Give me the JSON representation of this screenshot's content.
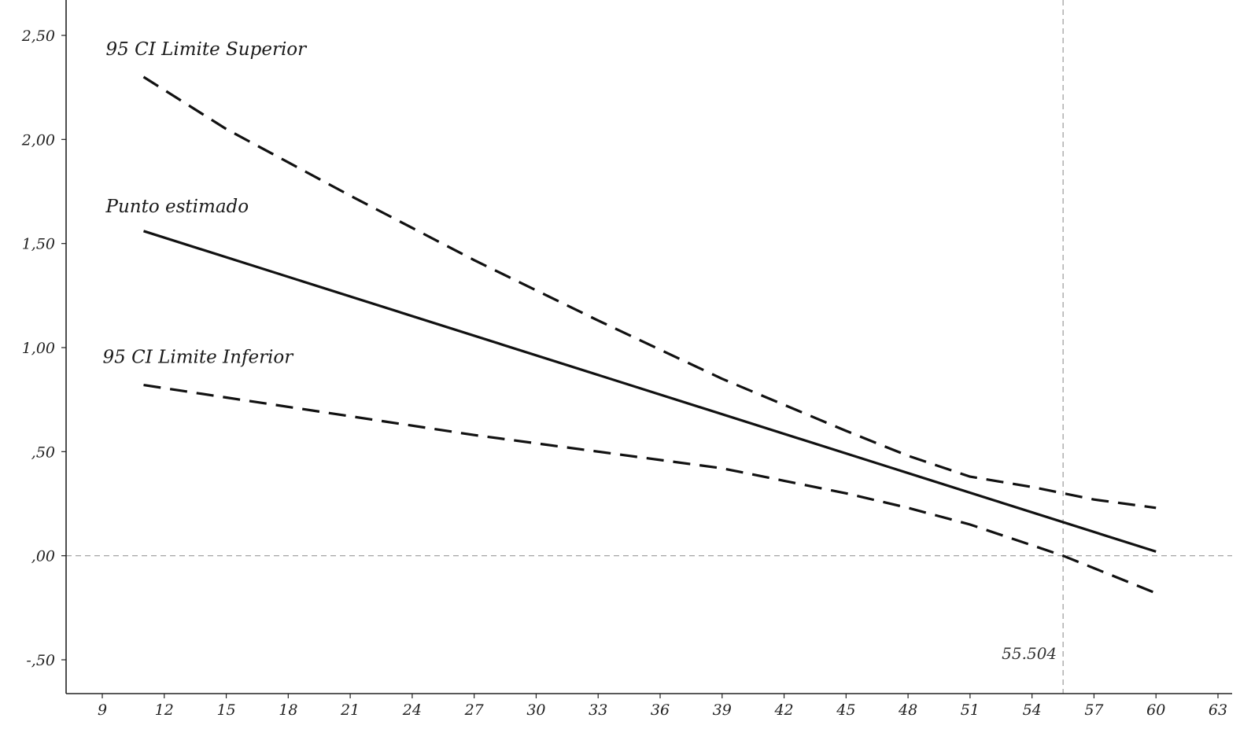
{
  "chart_data": {
    "type": "line",
    "xlim": [
      9,
      63
    ],
    "ylim": [
      -0.65,
      2.65
    ],
    "x_ticks": [
      {
        "value": 9,
        "label": "9"
      },
      {
        "value": 12,
        "label": "12"
      },
      {
        "value": 15,
        "label": "15"
      },
      {
        "value": 18,
        "label": "18"
      },
      {
        "value": 21,
        "label": "21"
      },
      {
        "value": 24,
        "label": "24"
      },
      {
        "value": 27,
        "label": "27"
      },
      {
        "value": 30,
        "label": "30"
      },
      {
        "value": 33,
        "label": "33"
      },
      {
        "value": 36,
        "label": "36"
      },
      {
        "value": 39,
        "label": "39"
      },
      {
        "value": 42,
        "label": "42"
      },
      {
        "value": 45,
        "label": "45"
      },
      {
        "value": 48,
        "label": "48"
      },
      {
        "value": 51,
        "label": "51"
      },
      {
        "value": 54,
        "label": "54"
      },
      {
        "value": 57,
        "label": "57"
      },
      {
        "value": 60,
        "label": "60"
      },
      {
        "value": 63,
        "label": "63"
      }
    ],
    "y_ticks": [
      {
        "value": 2.5,
        "label": "2,50"
      },
      {
        "value": 2.0,
        "label": "2,00"
      },
      {
        "value": 1.5,
        "label": "1,50"
      },
      {
        "value": 1.0,
        "label": "1,00"
      },
      {
        "value": 0.5,
        "label": ",50"
      },
      {
        "value": 0.0,
        "label": ",00"
      },
      {
        "value": -0.5,
        "label": "-,50"
      }
    ],
    "series": [
      {
        "name": "95 CI Limite Superior",
        "style": "dashed",
        "points": [
          [
            11,
            2.3
          ],
          [
            15,
            2.05
          ],
          [
            21,
            1.73
          ],
          [
            27,
            1.42
          ],
          [
            33,
            1.13
          ],
          [
            39,
            0.85
          ],
          [
            45,
            0.6
          ],
          [
            48,
            0.48
          ],
          [
            51,
            0.38
          ],
          [
            54,
            0.33
          ],
          [
            57,
            0.27
          ],
          [
            60,
            0.23
          ]
        ]
      },
      {
        "name": "Punto estimado",
        "style": "solid",
        "points": [
          [
            11,
            1.56
          ],
          [
            60,
            0.02
          ]
        ]
      },
      {
        "name": "95 CI Limite Inferior",
        "style": "dashed",
        "points": [
          [
            11,
            0.82
          ],
          [
            15,
            0.76
          ],
          [
            21,
            0.67
          ],
          [
            27,
            0.58
          ],
          [
            33,
            0.5
          ],
          [
            39,
            0.42
          ],
          [
            42,
            0.36
          ],
          [
            45,
            0.3
          ],
          [
            48,
            0.23
          ],
          [
            51,
            0.15
          ],
          [
            54,
            0.05
          ],
          [
            55.5,
            0.0
          ],
          [
            57,
            -0.06
          ],
          [
            60,
            -0.18
          ]
        ]
      }
    ],
    "reference_lines": {
      "horizontal_y": 0.0,
      "vertical_x": 55.504
    },
    "annotations": [
      {
        "text": "55.504",
        "x": 55.504,
        "y": -0.47
      }
    ],
    "grid": false,
    "colors": {
      "lines": "#111111",
      "reference": "#999999",
      "axis": "#222222"
    }
  }
}
